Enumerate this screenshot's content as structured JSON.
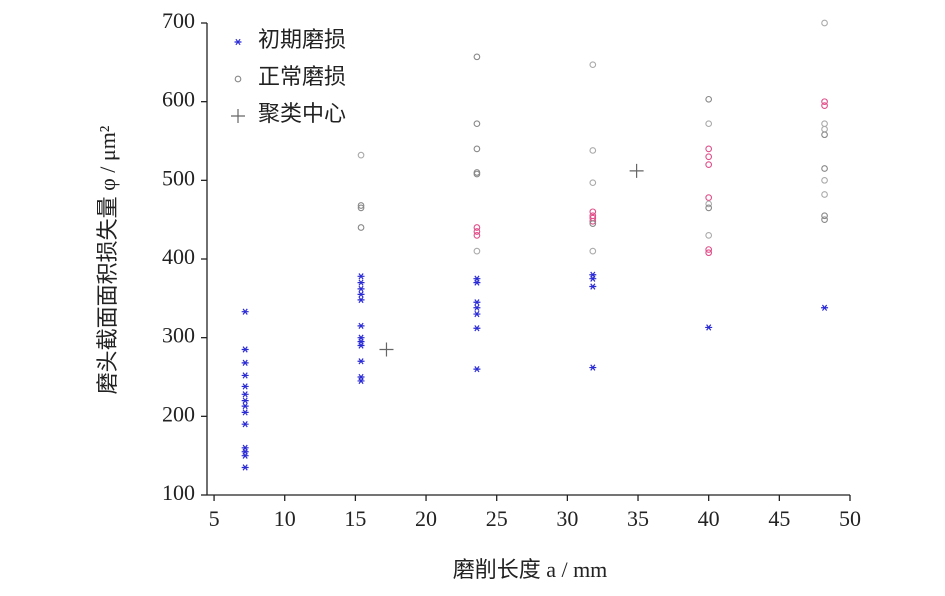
{
  "chart_data": {
    "type": "scatter",
    "xlabel": "磨削长度 a / mm",
    "ylabel": "磨头截面面积损失量 φ / μm²",
    "xlim": [
      4.5,
      50
    ],
    "ylim": [
      100,
      700
    ],
    "xticks": [
      5,
      10,
      15,
      20,
      25,
      30,
      35,
      40,
      45,
      50
    ],
    "yticks": [
      100,
      200,
      300,
      400,
      500,
      600,
      700
    ],
    "legend": "upper left",
    "series": [
      {
        "name": "初期磨损",
        "color": "#2b2bd6",
        "marker": "asterisk",
        "x": [
          7.2,
          7.2,
          7.2,
          7.2,
          7.2,
          7.2,
          7.2,
          7.2,
          7.2,
          7.2,
          7.2,
          7.2,
          7.2,
          7.2,
          15.4,
          15.4,
          15.4,
          15.4,
          15.4,
          15.4,
          15.4,
          15.4,
          15.4,
          15.4,
          15.4,
          15.4,
          23.6,
          23.6,
          23.6,
          23.6,
          23.6,
          23.6,
          23.6,
          31.8,
          31.8,
          31.8,
          31.8,
          40,
          48.2
        ],
        "values": [
          333,
          285,
          268,
          252,
          238,
          228,
          220,
          213,
          205,
          190,
          160,
          155,
          150,
          135,
          378,
          370,
          362,
          355,
          348,
          315,
          300,
          295,
          290,
          270,
          250,
          245,
          375,
          370,
          345,
          338,
          330,
          312,
          260,
          380,
          375,
          365,
          262,
          313,
          338
        ]
      },
      {
        "name": "正常磨损",
        "color": "#888888",
        "marker": "circle",
        "x": [
          15.4,
          15.4,
          15.4,
          15.4,
          23.6,
          23.6,
          23.6,
          23.6,
          23.6,
          23.6,
          23.6,
          23.6,
          23.6,
          31.8,
          31.8,
          31.8,
          31.8,
          31.8,
          31.8,
          31.8,
          31.8,
          31.8,
          40,
          40,
          40,
          40,
          40,
          40,
          40,
          40,
          40,
          40,
          40,
          48.2,
          48.2,
          48.2,
          48.2,
          48.2,
          48.2,
          48.2,
          48.2,
          48.2,
          48.2,
          48.2
        ],
        "values": [
          532,
          468,
          465,
          440,
          657,
          572,
          540,
          510,
          508,
          440,
          435,
          430,
          410,
          647,
          538,
          497,
          460,
          455,
          452,
          448,
          445,
          410,
          603,
          572,
          540,
          530,
          520,
          478,
          470,
          465,
          430,
          412,
          408,
          700,
          600,
          595,
          572,
          565,
          558,
          515,
          500,
          482,
          455,
          450
        ],
        "colors": [
          "#aaaaaa",
          "#888888",
          "#888888",
          "#888888",
          "#888888",
          "#888888",
          "#888888",
          "#888888",
          "#888888",
          "#e0508a",
          "#e0508a",
          "#e0508a",
          "#aaaaaa",
          "#aaaaaa",
          "#aaaaaa",
          "#aaaaaa",
          "#e0508a",
          "#e0508a",
          "#e0508a",
          "#e0508a",
          "#888888",
          "#aaaaaa",
          "#888888",
          "#aaaaaa",
          "#e0508a",
          "#e0508a",
          "#e0508a",
          "#e0508a",
          "#aaaaaa",
          "#888888",
          "#aaaaaa",
          "#e0508a",
          "#e0508a",
          "#aaaaaa",
          "#e0508a",
          "#e0508a",
          "#aaaaaa",
          "#aaaaaa",
          "#888888",
          "#888888",
          "#aaaaaa",
          "#aaaaaa",
          "#888888",
          "#888888"
        ]
      },
      {
        "name": "聚类中心",
        "color": "#666666",
        "marker": "plus",
        "x": [
          17.2,
          34.9
        ],
        "values": [
          285,
          512
        ]
      }
    ]
  }
}
